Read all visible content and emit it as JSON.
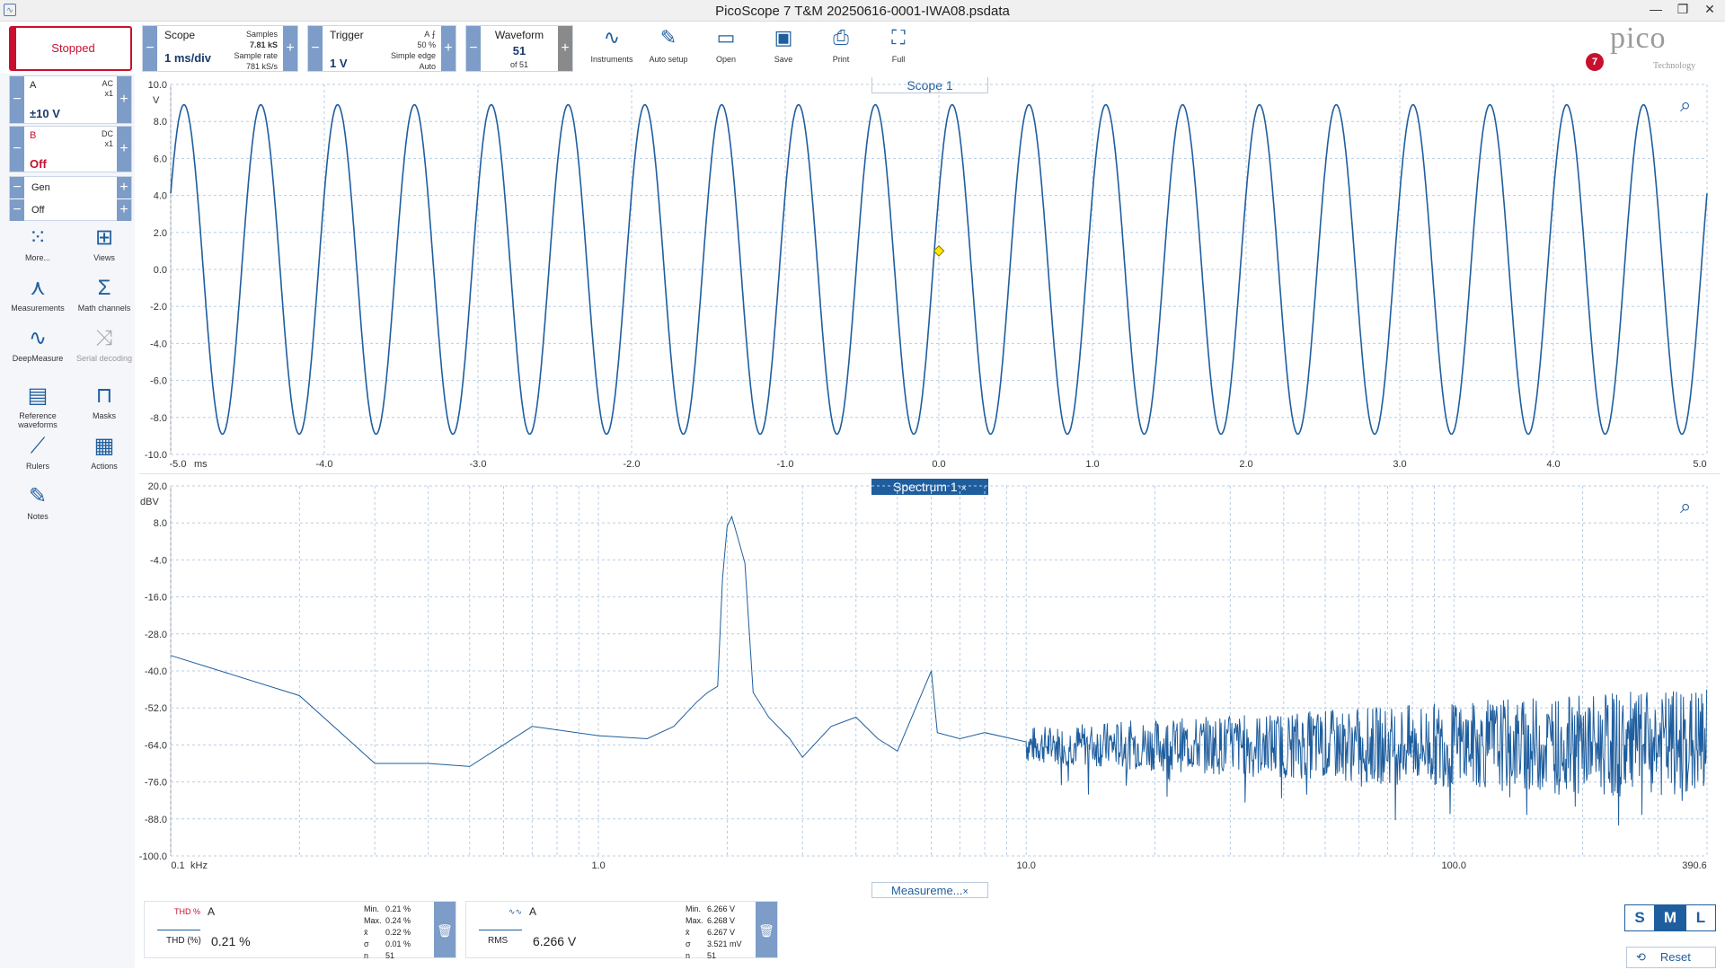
{
  "app": {
    "title": "PicoScope 7 T&M 20250616-0001-IWA08.psdata",
    "notif_count": "7",
    "logo": "pico",
    "logo_sub": "Technology"
  },
  "run": {
    "label": "Stopped"
  },
  "scope_ctl": {
    "title": "Scope",
    "timebase": "1 ms/div",
    "samples_label": "Samples",
    "samples": "7.81 kS",
    "rate_label": "Sample rate",
    "rate": "781 kS/s"
  },
  "trigger_ctl": {
    "title": "Trigger",
    "level": "1 V",
    "channel": "A",
    "edge": "⨍",
    "pct": "50 %",
    "type": "Simple edge",
    "mode": "Auto"
  },
  "waveform_ctl": {
    "title": "Waveform",
    "num": "51",
    "of": "of 51"
  },
  "toolbar": [
    {
      "label": "Instruments",
      "icon": "instruments-icon",
      "glyph": "∿"
    },
    {
      "label": "Auto setup",
      "icon": "wand-icon",
      "glyph": "✎"
    },
    {
      "label": "Open",
      "icon": "folder-icon",
      "glyph": "▭"
    },
    {
      "label": "Save",
      "icon": "save-icon",
      "glyph": "▣"
    },
    {
      "label": "Print",
      "icon": "printer-icon",
      "glyph": "⎙"
    },
    {
      "label": "Full",
      "icon": "fullscreen-icon",
      "glyph": "⛶"
    }
  ],
  "channels": {
    "a": {
      "name": "A",
      "coupling": "AC",
      "probe": "x1",
      "range": "±10 V"
    },
    "b": {
      "name": "B",
      "coupling": "DC",
      "probe": "x1",
      "range": "Off"
    },
    "gen": {
      "name": "Gen",
      "state": "Off"
    }
  },
  "tools": [
    {
      "label": "More...",
      "icon": "grid-dots-icon",
      "glyph": "⁙"
    },
    {
      "label": "Views",
      "icon": "views-icon",
      "glyph": "⊞"
    },
    {
      "label": "Measurements",
      "icon": "measurements-icon",
      "glyph": "⋏"
    },
    {
      "label": "Math channels",
      "icon": "sigma-icon",
      "glyph": "Σ"
    },
    {
      "label": "DeepMeasure",
      "icon": "deepmeasure-icon",
      "glyph": "∿"
    },
    {
      "label": "Serial decoding",
      "icon": "serial-icon",
      "glyph": "⤨"
    },
    {
      "label": "Reference waveforms",
      "icon": "reference-icon",
      "glyph": "▤"
    },
    {
      "label": "Masks",
      "icon": "masks-icon",
      "glyph": "⊓"
    },
    {
      "label": "Rulers",
      "icon": "ruler-icon",
      "glyph": "⟋"
    },
    {
      "label": "Actions",
      "icon": "actions-icon",
      "glyph": "▦"
    },
    {
      "label": "Notes",
      "icon": "notes-icon",
      "glyph": "✎"
    }
  ],
  "scope_tab": "Scope 1",
  "spectrum_tab": "Spectrum 1",
  "meas_tab": "Measureme...",
  "chart_data": [
    {
      "type": "line",
      "title": "Scope 1",
      "ylabel": "V",
      "xunit": "ms",
      "ylim": [
        -10,
        10
      ],
      "xlim": [
        -5,
        5
      ],
      "yticks": [
        "10.0",
        "8.0",
        "6.0",
        "4.0",
        "2.0",
        "0.0",
        "-2.0",
        "-4.0",
        "-6.0",
        "-8.0",
        "-10.0"
      ],
      "xticks": [
        "-5.0",
        "-4.0",
        "-3.0",
        "-2.0",
        "-1.0",
        "0.0",
        "1.0",
        "2.0",
        "3.0",
        "4.0",
        "5.0"
      ],
      "series": [
        {
          "name": "A",
          "color": "#1f5e9e",
          "amplitude": 8.9,
          "frequency_khz": 2.0,
          "sweep_ms": [
            -5,
            5
          ]
        }
      ],
      "trigger_marker": {
        "x": 0.0,
        "y": 1.0
      }
    },
    {
      "type": "line",
      "title": "Spectrum 1",
      "ylabel": "dBV",
      "xunit": "kHz",
      "xscale": "log",
      "ylim": [
        -100,
        20
      ],
      "xlim": [
        0.1,
        390.6
      ],
      "yticks": [
        "20.0",
        "8.0",
        "-4.0",
        "-16.0",
        "-28.0",
        "-40.0",
        "-52.0",
        "-64.0",
        "-76.0",
        "-88.0",
        "-100.0"
      ],
      "xticks": [
        "0.1",
        "1.0",
        "10.0",
        "100.0",
        "390.6"
      ],
      "series": [
        {
          "name": "A",
          "color": "#1f5e9e",
          "points": [
            [
              0.1,
              -35
            ],
            [
              0.2,
              -48
            ],
            [
              0.3,
              -70
            ],
            [
              0.4,
              -70
            ],
            [
              0.5,
              -71
            ],
            [
              0.7,
              -58
            ],
            [
              1.0,
              -61
            ],
            [
              1.3,
              -62
            ],
            [
              1.5,
              -58
            ],
            [
              1.7,
              -50
            ],
            [
              1.8,
              -47
            ],
            [
              1.9,
              -45
            ],
            [
              1.95,
              -10
            ],
            [
              2.0,
              7
            ],
            [
              2.05,
              10
            ],
            [
              2.1,
              5
            ],
            [
              2.2,
              -5
            ],
            [
              2.3,
              -47
            ],
            [
              2.5,
              -55
            ],
            [
              2.8,
              -62
            ],
            [
              3.0,
              -68
            ],
            [
              3.5,
              -58
            ],
            [
              4.0,
              -55
            ],
            [
              4.5,
              -62
            ],
            [
              5.0,
              -66
            ],
            [
              6.0,
              -40
            ],
            [
              6.2,
              -60
            ],
            [
              7.0,
              -62
            ],
            [
              8.0,
              -60
            ],
            [
              10.0,
              -63
            ],
            [
              390.6,
              -64
            ]
          ]
        }
      ]
    }
  ],
  "measurements": [
    {
      "name": "THD (%)",
      "channel": "A",
      "value": "0.21 %",
      "icon_label": "THD %",
      "min": "0.21 %",
      "max": "0.24 %",
      "mean": "0.22 %",
      "sd": "0.01 %",
      "n": "51"
    },
    {
      "name": "RMS",
      "channel": "A",
      "value": "6.266 V",
      "min": "6.266 V",
      "max": "6.268 V",
      "mean": "6.267 V",
      "sd": "3.521 mV",
      "n": "51"
    }
  ],
  "stat_labels": [
    "Min.",
    "Max.",
    "x̄",
    "σ",
    "n"
  ],
  "size": {
    "s": "S",
    "m": "M",
    "l": "L"
  },
  "reset": "Reset"
}
